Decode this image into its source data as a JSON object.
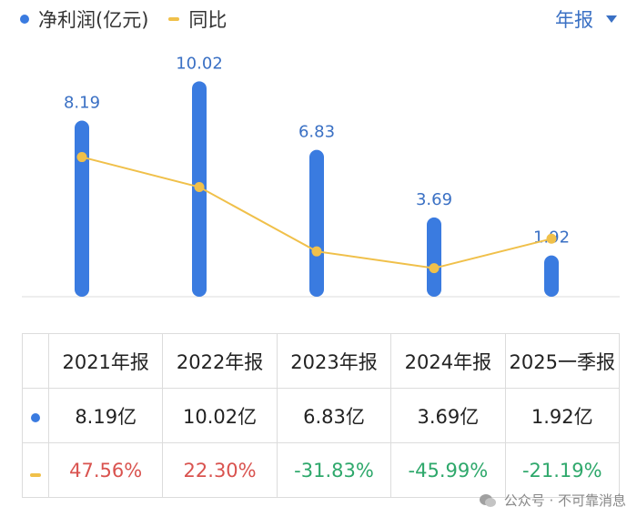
{
  "colors": {
    "bar": "#3a7be0",
    "line": "#f0c04a",
    "label": "#3a70c4",
    "positive": "#d9534f",
    "negative": "#2ea86b",
    "axis": "#dddddd"
  },
  "legend": {
    "profit_label": "净利润(亿元)",
    "yoy_label": "同比"
  },
  "period_selector": {
    "label": "年报"
  },
  "chart_data": {
    "type": "bar",
    "categories": [
      "2021年报",
      "2022年报",
      "2023年报",
      "2024年报",
      "2025一季报"
    ],
    "series": [
      {
        "name": "净利润(亿元)",
        "type": "bar",
        "values": [
          8.19,
          10.02,
          6.83,
          3.69,
          1.92
        ],
        "value_labels": [
          "8.19",
          "10.02",
          "6.83",
          "3.69",
          "1.92"
        ]
      },
      {
        "name": "同比",
        "type": "line",
        "unit": "%",
        "values": [
          47.56,
          22.3,
          -31.83,
          -45.99,
          -21.19
        ]
      }
    ],
    "ylim": [
      0,
      10.5
    ],
    "yoy_ylim": [
      -70,
      120
    ]
  },
  "table": {
    "headers": [
      "2021年报",
      "2022年报",
      "2023年报",
      "2024年报",
      "2025一季报"
    ],
    "profit_row": [
      "8.19亿",
      "10.02亿",
      "6.83亿",
      "3.69亿",
      "1.92亿"
    ],
    "yoy_row": [
      "47.56%",
      "22.30%",
      "-31.83%",
      "-45.99%",
      "-21.19%"
    ]
  },
  "watermark": {
    "text": "公众号 · 不可靠消息"
  }
}
